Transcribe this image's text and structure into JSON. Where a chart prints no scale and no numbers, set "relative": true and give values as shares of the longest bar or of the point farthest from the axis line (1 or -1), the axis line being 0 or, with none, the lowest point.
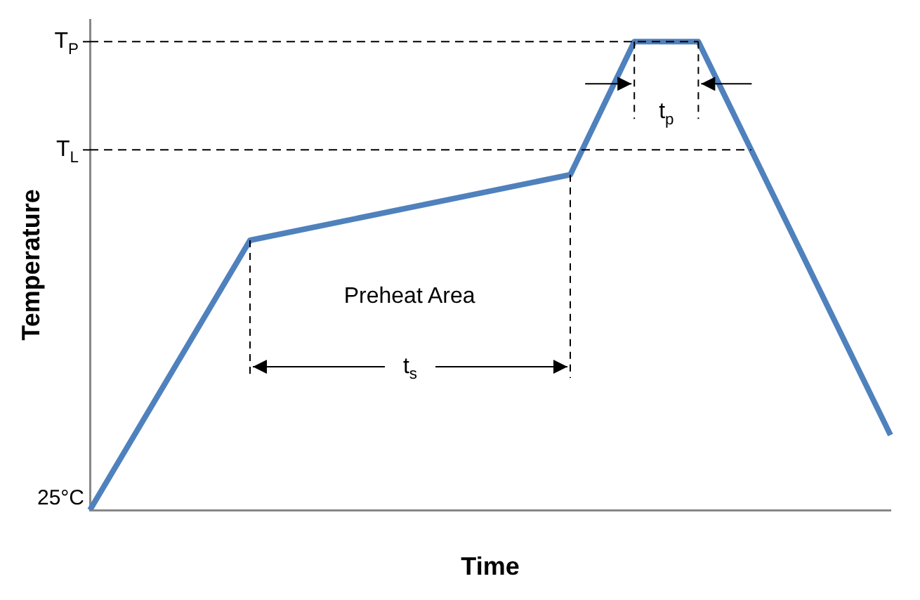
{
  "chart_data": {
    "type": "line",
    "relative": true,
    "xlabel": "Time",
    "ylabel": "Temperature",
    "categories": [
      null,
      null,
      null,
      null,
      null,
      null,
      null,
      null,
      null,
      null,
      null,
      null,
      null,
      null,
      null,
      null,
      null,
      null,
      null,
      null,
      null,
      null,
      null,
      null,
      null,
      null
    ],
    "values": [
      0,
      null,
      null,
      null,
      null,
      0.576,
      null,
      null,
      null,
      null,
      null,
      null,
      null,
      null,
      null,
      0.716,
      null,
      1,
      null,
      1,
      null,
      null,
      null,
      null,
      null,
      0.16
    ],
    "color": "#4f81bd",
    "grid": false,
    "legend": false,
    "marker": "none",
    "ref_lines": [
      {
        "axis": "y",
        "value": 1,
        "label": "T$_{P}$",
        "color": "#000000",
        "line_style": "dashed"
      },
      {
        "axis": "y",
        "value": 0.769,
        "label": "T$_{L}$",
        "color": "#000000",
        "line_style": "dashed"
      }
    ],
    "annotations": [
      "Preheat Area",
      "t$_{s}$",
      "t$_{p}$",
      "25°C"
    ]
  }
}
